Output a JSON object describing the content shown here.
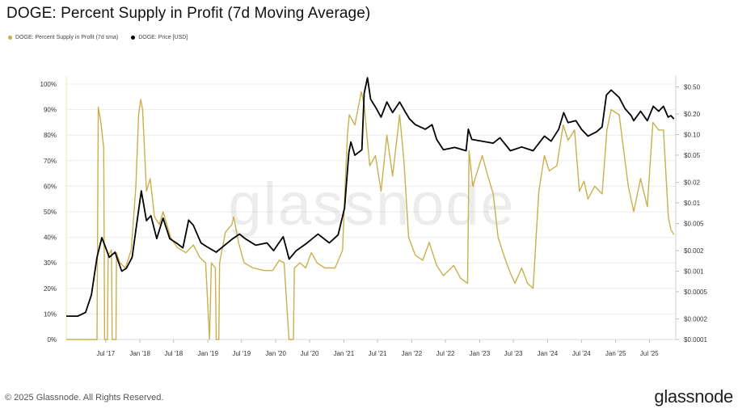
{
  "title": "DOGE: Percent Supply in Profit (7d Moving Average)",
  "legend": [
    {
      "label": "DOGE: Percent Supply in Profit (7d sma)",
      "color": "#C9B04E"
    },
    {
      "label": "DOGE: Price [USD]",
      "color": "#000000"
    }
  ],
  "watermark": "glassnode",
  "footer": {
    "copyright": "© 2025 Glassnode. All Rights Reserved.",
    "logo": "glassnode"
  },
  "chart_data": {
    "type": "line",
    "title": "DOGE: Percent Supply in Profit (7d Moving Average)",
    "x_ticks": [
      "Jul '17",
      "Jan '18",
      "Jul '18",
      "Jan '19",
      "Jul '19",
      "Jan '20",
      "Jul '20",
      "Jan '21",
      "Jul '21",
      "Jan '22",
      "Jul '22",
      "Jan '23",
      "Jul '23",
      "Jan '24",
      "Jul '24",
      "Jan '25",
      "Jul '25"
    ],
    "y_left": {
      "label": "",
      "ticks": [
        "0%",
        "10%",
        "20%",
        "30%",
        "40%",
        "50%",
        "60%",
        "70%",
        "80%",
        "90%",
        "100%"
      ],
      "range": [
        0,
        100
      ]
    },
    "y_right": {
      "label": "",
      "scale": "log",
      "ticks": [
        "$0.0001",
        "$0.0002",
        "$0.0005",
        "$0.001",
        "$0.002",
        "$0.005",
        "$0.01",
        "$0.02",
        "$0.05",
        "$0.10",
        "$0.20",
        "$0.50"
      ],
      "range": [
        0.0001,
        0.55
      ]
    },
    "grid": true,
    "legend_position": "top-left",
    "series": [
      {
        "name": "DOGE: Percent Supply in Profit (7d sma)",
        "color": "#C9B04E",
        "axis": "left",
        "points": [
          [
            "2016-12-01",
            0
          ],
          [
            "2017-05-15",
            0
          ],
          [
            "2017-05-22",
            91
          ],
          [
            "2017-06-05",
            85
          ],
          [
            "2017-06-20",
            75
          ],
          [
            "2017-06-25",
            0
          ],
          [
            "2017-07-10",
            0
          ],
          [
            "2017-07-14",
            33
          ],
          [
            "2017-08-01",
            35
          ],
          [
            "2017-08-05",
            0
          ],
          [
            "2017-08-25",
            0
          ],
          [
            "2017-08-28",
            34
          ],
          [
            "2017-09-15",
            30
          ],
          [
            "2017-10-15",
            28
          ],
          [
            "2017-11-15",
            35
          ],
          [
            "2017-12-10",
            60
          ],
          [
            "2017-12-25",
            88
          ],
          [
            "2018-01-05",
            94
          ],
          [
            "2018-01-15",
            90
          ],
          [
            "2018-02-05",
            58
          ],
          [
            "2018-02-25",
            63
          ],
          [
            "2018-03-20",
            48
          ],
          [
            "2018-04-15",
            45
          ],
          [
            "2018-05-05",
            50
          ],
          [
            "2018-06-15",
            40
          ],
          [
            "2018-07-20",
            36
          ],
          [
            "2018-09-05",
            34
          ],
          [
            "2018-10-15",
            37
          ],
          [
            "2018-11-20",
            32
          ],
          [
            "2018-12-20",
            30
          ],
          [
            "2019-01-10",
            0
          ],
          [
            "2019-01-20",
            30
          ],
          [
            "2019-02-10",
            28
          ],
          [
            "2019-02-15",
            0
          ],
          [
            "2019-03-01",
            0
          ],
          [
            "2019-03-05",
            30
          ],
          [
            "2019-04-05",
            42
          ],
          [
            "2019-05-10",
            45
          ],
          [
            "2019-05-20",
            48
          ],
          [
            "2019-06-15",
            38
          ],
          [
            "2019-07-15",
            30
          ],
          [
            "2019-09-01",
            28
          ],
          [
            "2019-11-01",
            27
          ],
          [
            "2019-12-15",
            27
          ],
          [
            "2020-01-20",
            31
          ],
          [
            "2020-02-15",
            30
          ],
          [
            "2020-03-12",
            0
          ],
          [
            "2020-04-05",
            0
          ],
          [
            "2020-04-10",
            28
          ],
          [
            "2020-05-10",
            30
          ],
          [
            "2020-06-10",
            28
          ],
          [
            "2020-07-10",
            34
          ],
          [
            "2020-08-10",
            30
          ],
          [
            "2020-09-20",
            28
          ],
          [
            "2020-11-15",
            28
          ],
          [
            "2020-12-25",
            35
          ],
          [
            "2021-01-05",
            55
          ],
          [
            "2021-01-20",
            80
          ],
          [
            "2021-01-30",
            88
          ],
          [
            "2021-03-01",
            84
          ],
          [
            "2021-04-05",
            97
          ],
          [
            "2021-04-20",
            92
          ],
          [
            "2021-05-20",
            68
          ],
          [
            "2021-06-20",
            72
          ],
          [
            "2021-07-20",
            58
          ],
          [
            "2021-08-20",
            80
          ],
          [
            "2021-09-20",
            64
          ],
          [
            "2021-10-28",
            88
          ],
          [
            "2021-11-20",
            70
          ],
          [
            "2021-12-15",
            40
          ],
          [
            "2022-01-20",
            33
          ],
          [
            "2022-03-01",
            31
          ],
          [
            "2022-04-05",
            38
          ],
          [
            "2022-05-15",
            29
          ],
          [
            "2022-06-20",
            25
          ],
          [
            "2022-08-15",
            29
          ],
          [
            "2022-09-20",
            24
          ],
          [
            "2022-10-28",
            22
          ],
          [
            "2022-11-05",
            74
          ],
          [
            "2022-11-25",
            60
          ],
          [
            "2023-01-15",
            72
          ],
          [
            "2023-02-10",
            65
          ],
          [
            "2023-03-15",
            57
          ],
          [
            "2023-04-10",
            40
          ],
          [
            "2023-05-15",
            32
          ],
          [
            "2023-06-15",
            26
          ],
          [
            "2023-07-10",
            22
          ],
          [
            "2023-08-15",
            28
          ],
          [
            "2023-09-15",
            22
          ],
          [
            "2023-10-15",
            20
          ],
          [
            "2023-11-15",
            58
          ],
          [
            "2023-12-15",
            72
          ],
          [
            "2024-01-10",
            66
          ],
          [
            "2024-02-20",
            68
          ],
          [
            "2024-03-25",
            84
          ],
          [
            "2024-04-20",
            78
          ],
          [
            "2024-05-25",
            82
          ],
          [
            "2024-06-20",
            58
          ],
          [
            "2024-07-15",
            62
          ],
          [
            "2024-08-05",
            55
          ],
          [
            "2024-09-10",
            60
          ],
          [
            "2024-10-20",
            57
          ],
          [
            "2024-11-15",
            82
          ],
          [
            "2024-12-08",
            90
          ],
          [
            "2025-01-20",
            88
          ],
          [
            "2025-02-20",
            70
          ],
          [
            "2025-03-10",
            60
          ],
          [
            "2025-04-08",
            50
          ],
          [
            "2025-05-15",
            63
          ],
          [
            "2025-06-20",
            52
          ],
          [
            "2025-07-20",
            85
          ],
          [
            "2025-08-20",
            82
          ],
          [
            "2025-09-15",
            82
          ],
          [
            "2025-10-11",
            48
          ],
          [
            "2025-10-25",
            43
          ],
          [
            "2025-11-10",
            41
          ]
        ]
      },
      {
        "name": "DOGE: Price [USD]",
        "color": "#000000",
        "axis": "right",
        "points": [
          [
            "2016-12-01",
            0.00022
          ],
          [
            "2017-02-01",
            0.00022
          ],
          [
            "2017-03-15",
            0.00025
          ],
          [
            "2017-04-15",
            0.00045
          ],
          [
            "2017-05-15",
            0.0016
          ],
          [
            "2017-06-10",
            0.0031
          ],
          [
            "2017-07-01",
            0.0022
          ],
          [
            "2017-07-20",
            0.0016
          ],
          [
            "2017-08-20",
            0.0019
          ],
          [
            "2017-09-25",
            0.001
          ],
          [
            "2017-10-20",
            0.0011
          ],
          [
            "2017-11-20",
            0.0016
          ],
          [
            "2017-12-15",
            0.005
          ],
          [
            "2018-01-08",
            0.015
          ],
          [
            "2018-02-05",
            0.0055
          ],
          [
            "2018-03-01",
            0.0065
          ],
          [
            "2018-04-01",
            0.003
          ],
          [
            "2018-05-05",
            0.006
          ],
          [
            "2018-06-10",
            0.003
          ],
          [
            "2018-07-15",
            0.0026
          ],
          [
            "2018-08-20",
            0.0022
          ],
          [
            "2018-09-20",
            0.0056
          ],
          [
            "2018-10-15",
            0.0047
          ],
          [
            "2018-11-25",
            0.0026
          ],
          [
            "2018-12-25",
            0.0023
          ],
          [
            "2019-02-15",
            0.0019
          ],
          [
            "2019-04-01",
            0.0024
          ],
          [
            "2019-05-15",
            0.003
          ],
          [
            "2019-06-20",
            0.0035
          ],
          [
            "2019-07-20",
            0.003
          ],
          [
            "2019-09-15",
            0.0024
          ],
          [
            "2019-11-15",
            0.0026
          ],
          [
            "2019-12-20",
            0.002
          ],
          [
            "2020-02-10",
            0.0032
          ],
          [
            "2020-03-13",
            0.0015
          ],
          [
            "2020-04-20",
            0.002
          ],
          [
            "2020-06-10",
            0.0025
          ],
          [
            "2020-08-15",
            0.0035
          ],
          [
            "2020-10-15",
            0.0026
          ],
          [
            "2020-12-01",
            0.0034
          ],
          [
            "2021-01-05",
            0.0085
          ],
          [
            "2021-01-28",
            0.055
          ],
          [
            "2021-02-08",
            0.078
          ],
          [
            "2021-03-01",
            0.05
          ],
          [
            "2021-04-08",
            0.06
          ],
          [
            "2021-04-20",
            0.4
          ],
          [
            "2021-05-08",
            0.68
          ],
          [
            "2021-05-25",
            0.33
          ],
          [
            "2021-06-25",
            0.24
          ],
          [
            "2021-07-20",
            0.18
          ],
          [
            "2021-08-20",
            0.3
          ],
          [
            "2021-09-20",
            0.21
          ],
          [
            "2021-10-28",
            0.3
          ],
          [
            "2021-11-25",
            0.22
          ],
          [
            "2021-12-20",
            0.17
          ],
          [
            "2022-01-20",
            0.14
          ],
          [
            "2022-03-15",
            0.12
          ],
          [
            "2022-04-20",
            0.14
          ],
          [
            "2022-05-15",
            0.085
          ],
          [
            "2022-06-20",
            0.06
          ],
          [
            "2022-08-20",
            0.065
          ],
          [
            "2022-10-20",
            0.058
          ],
          [
            "2022-11-01",
            0.12
          ],
          [
            "2022-11-20",
            0.085
          ],
          [
            "2023-01-15",
            0.08
          ],
          [
            "2023-03-15",
            0.075
          ],
          [
            "2023-04-20",
            0.09
          ],
          [
            "2023-06-15",
            0.058
          ],
          [
            "2023-08-15",
            0.066
          ],
          [
            "2023-10-15",
            0.058
          ],
          [
            "2023-12-15",
            0.095
          ],
          [
            "2024-01-20",
            0.08
          ],
          [
            "2024-03-01",
            0.12
          ],
          [
            "2024-03-28",
            0.21
          ],
          [
            "2024-04-20",
            0.15
          ],
          [
            "2024-06-01",
            0.16
          ],
          [
            "2024-07-01",
            0.12
          ],
          [
            "2024-08-05",
            0.095
          ],
          [
            "2024-09-20",
            0.11
          ],
          [
            "2024-10-20",
            0.13
          ],
          [
            "2024-11-12",
            0.38
          ],
          [
            "2024-12-08",
            0.45
          ],
          [
            "2025-01-20",
            0.35
          ],
          [
            "2025-02-20",
            0.24
          ],
          [
            "2025-03-25",
            0.19
          ],
          [
            "2025-04-08",
            0.16
          ],
          [
            "2025-05-15",
            0.22
          ],
          [
            "2025-06-20",
            0.16
          ],
          [
            "2025-07-22",
            0.26
          ],
          [
            "2025-08-20",
            0.22
          ],
          [
            "2025-09-15",
            0.26
          ],
          [
            "2025-10-10",
            0.18
          ],
          [
            "2025-10-25",
            0.19
          ],
          [
            "2025-11-10",
            0.17
          ]
        ]
      }
    ]
  }
}
